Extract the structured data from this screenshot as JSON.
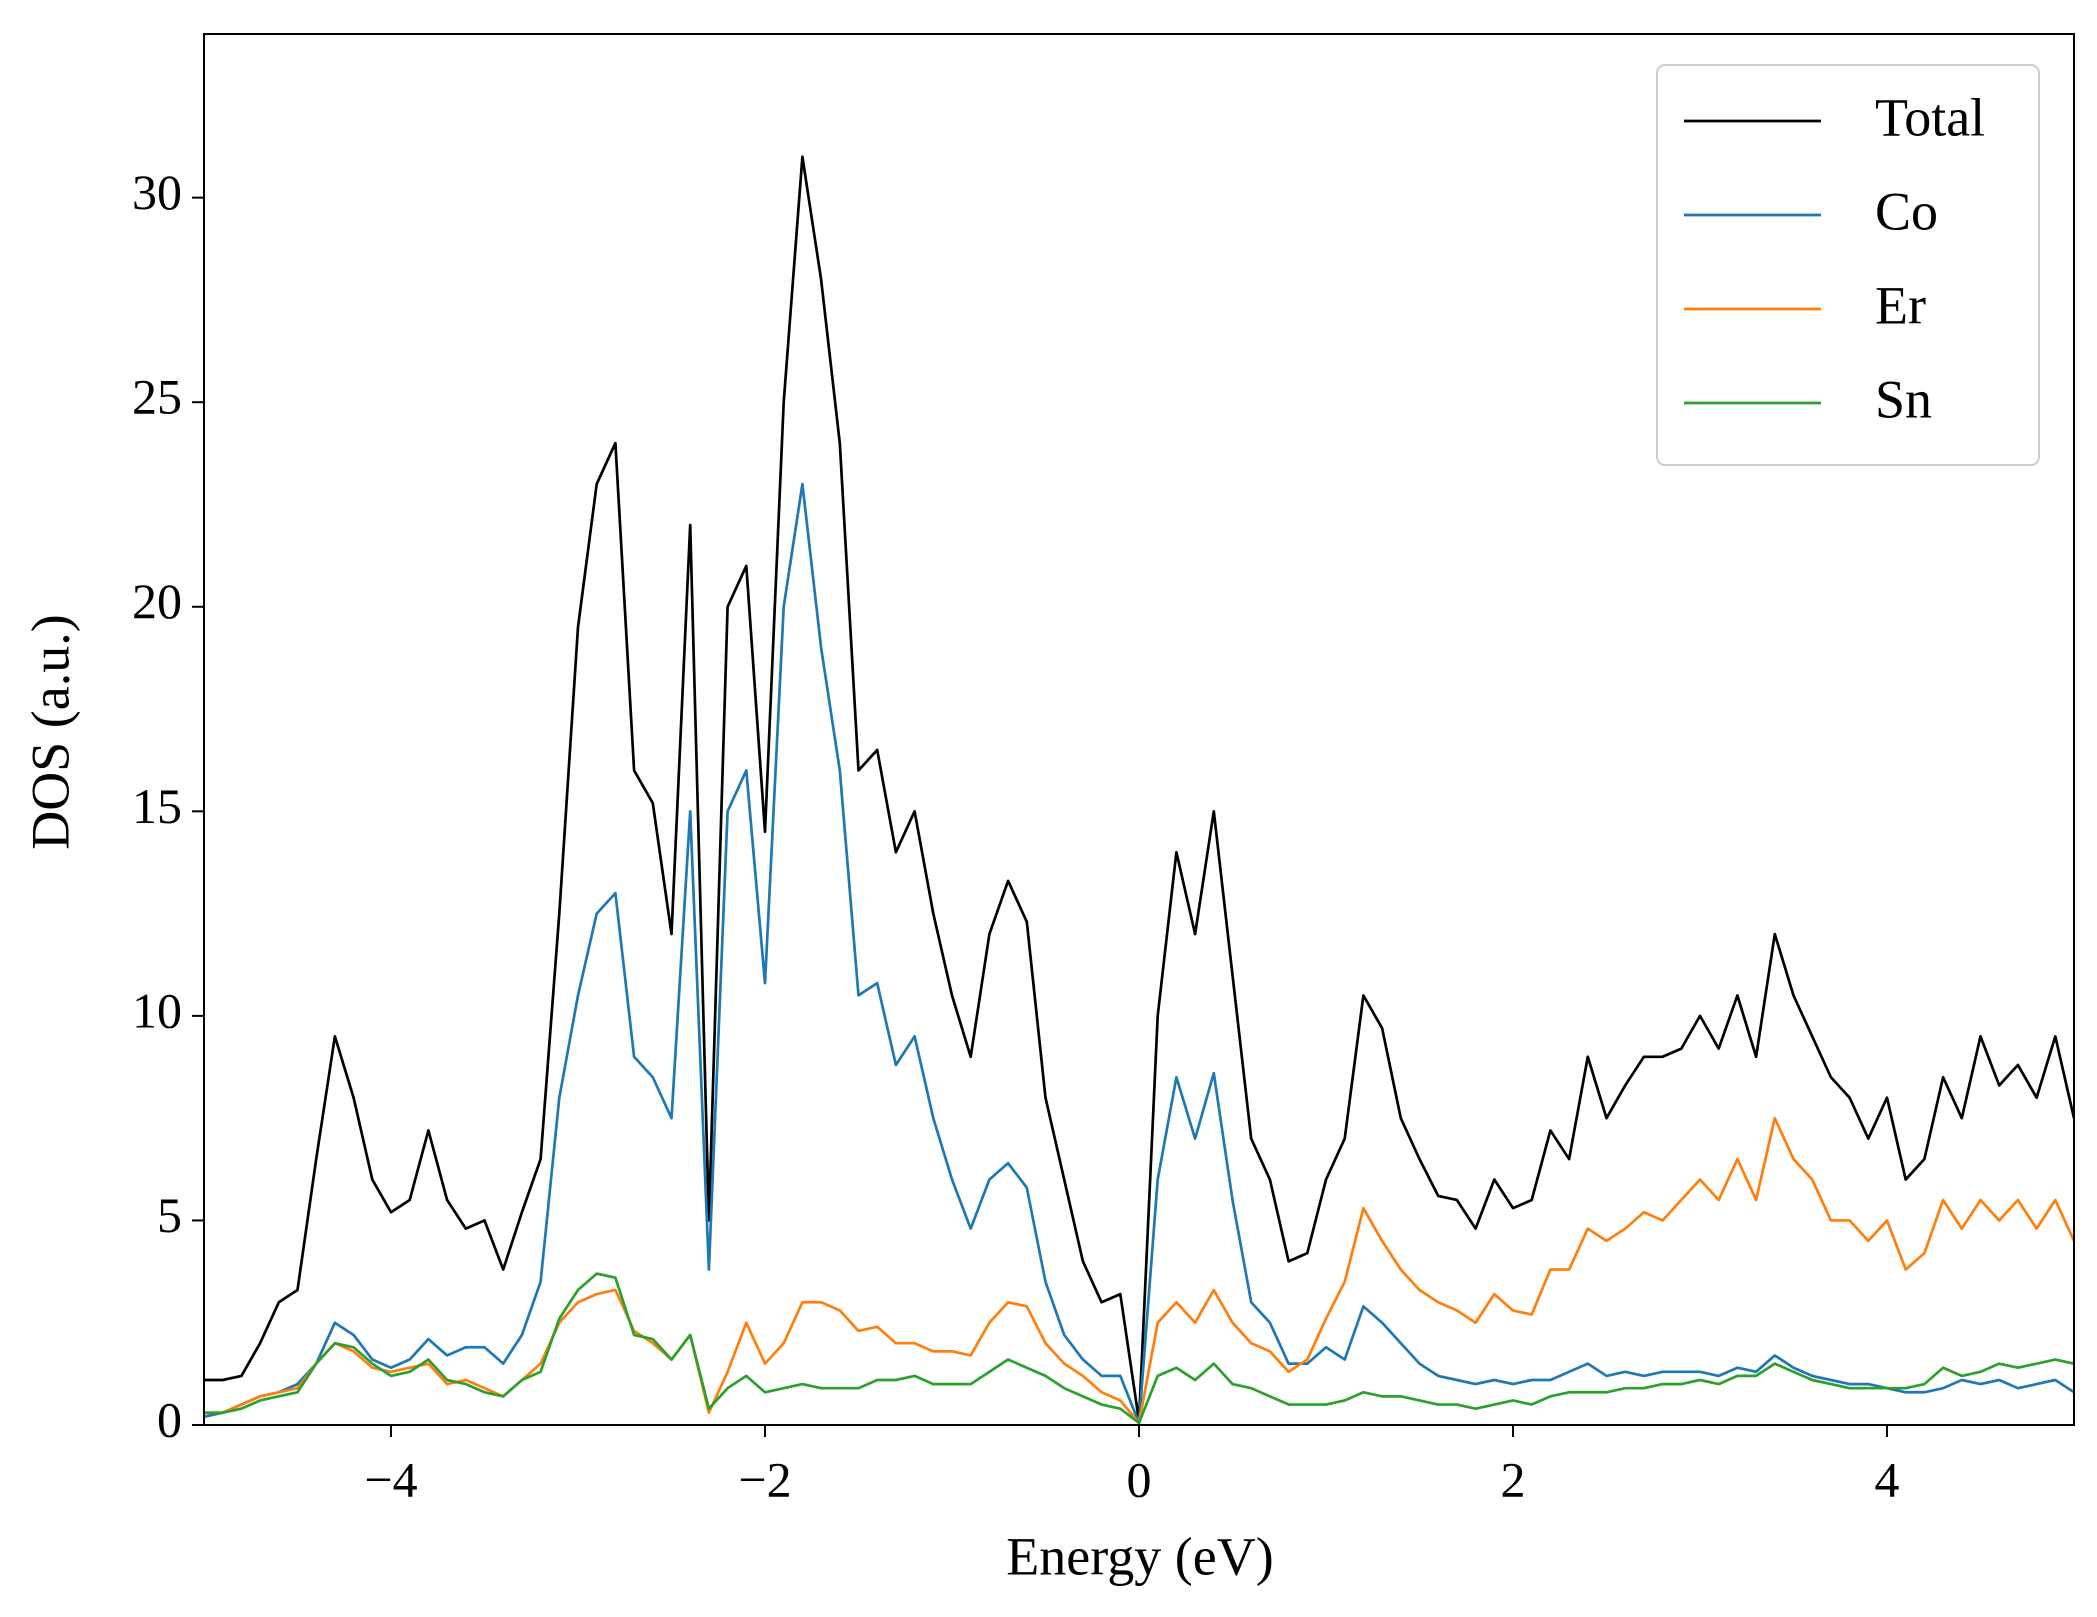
{
  "chart_data": {
    "type": "line",
    "xlabel": "Energy (eV)",
    "ylabel": "DOS (a.u.)",
    "xlim": [
      -5,
      5
    ],
    "ylim": [
      0,
      34
    ],
    "xticks": [
      {
        "value": -4,
        "label": "−4"
      },
      {
        "value": -2,
        "label": "−2"
      },
      0,
      2,
      4
    ],
    "yticks": [
      0,
      5,
      10,
      15,
      20,
      25,
      30
    ],
    "legend": "upper right",
    "x": [
      -5.0,
      -4.9,
      -4.8,
      -4.7,
      -4.6,
      -4.5,
      -4.4,
      -4.3,
      -4.2,
      -4.1,
      -4.0,
      -3.9,
      -3.8,
      -3.7,
      -3.6,
      -3.5,
      -3.4,
      -3.3,
      -3.2,
      -3.1,
      -3.0,
      -2.9,
      -2.8,
      -2.7,
      -2.6,
      -2.5,
      -2.4,
      -2.3,
      -2.2,
      -2.1,
      -2.0,
      -1.9,
      -1.8,
      -1.7,
      -1.6,
      -1.5,
      -1.4,
      -1.3,
      -1.2,
      -1.1,
      -1.0,
      -0.9,
      -0.8,
      -0.7,
      -0.6,
      -0.5,
      -0.4,
      -0.3,
      -0.2,
      -0.1,
      0.0,
      0.1,
      0.2,
      0.3,
      0.4,
      0.5,
      0.6,
      0.7,
      0.8,
      0.9,
      1.0,
      1.1,
      1.2,
      1.3,
      1.4,
      1.5,
      1.6,
      1.7,
      1.8,
      1.9,
      2.0,
      2.1,
      2.2,
      2.3,
      2.4,
      2.5,
      2.6,
      2.7,
      2.8,
      2.9,
      3.0,
      3.1,
      3.2,
      3.3,
      3.4,
      3.5,
      3.6,
      3.7,
      3.8,
      3.9,
      4.0,
      4.1,
      4.2,
      4.3,
      4.4,
      4.5,
      4.6,
      4.7,
      4.8,
      4.9,
      5.0
    ],
    "series": [
      {
        "name": "Total",
        "color": "#000000",
        "values": [
          1.1,
          1.1,
          1.2,
          2.0,
          3.0,
          3.3,
          6.5,
          9.5,
          8.0,
          6.0,
          5.2,
          5.5,
          7.2,
          5.5,
          4.8,
          5.0,
          3.8,
          5.2,
          6.5,
          12.5,
          19.5,
          23.0,
          24.0,
          16.0,
          15.2,
          12.0,
          22.0,
          5.0,
          20.0,
          21.0,
          14.5,
          25.0,
          31.0,
          28.0,
          24.0,
          16.0,
          16.5,
          14.0,
          15.0,
          12.5,
          10.5,
          9.0,
          12.0,
          13.3,
          12.3,
          8.0,
          6.0,
          4.0,
          3.0,
          3.2,
          0.1,
          10.0,
          14.0,
          12.0,
          15.0,
          11.0,
          7.0,
          6.0,
          4.0,
          4.2,
          6.0,
          7.0,
          10.5,
          9.7,
          7.5,
          6.5,
          5.6,
          5.5,
          4.8,
          6.0,
          5.3,
          5.5,
          7.2,
          6.5,
          9.0,
          7.5,
          8.3,
          9.0,
          9.0,
          9.2,
          10.0,
          9.2,
          10.5,
          9.0,
          12.0,
          10.5,
          9.5,
          8.5,
          8.0,
          7.0,
          8.0,
          6.0,
          6.5,
          8.5,
          7.5,
          9.5,
          8.3,
          8.8,
          8.0,
          9.5,
          7.5
        ]
      },
      {
        "name": "Co",
        "color": "#1f77b4",
        "values": [
          0.2,
          0.3,
          0.5,
          0.7,
          0.8,
          1.0,
          1.5,
          2.5,
          2.2,
          1.6,
          1.4,
          1.6,
          2.1,
          1.7,
          1.9,
          1.9,
          1.5,
          2.2,
          3.5,
          8.0,
          10.5,
          12.5,
          13.0,
          9.0,
          8.5,
          7.5,
          15.0,
          3.8,
          15.0,
          16.0,
          10.8,
          20.0,
          23.0,
          19.0,
          16.0,
          10.5,
          10.8,
          8.8,
          9.5,
          7.5,
          6.0,
          4.8,
          6.0,
          6.4,
          5.8,
          3.5,
          2.2,
          1.6,
          1.2,
          1.2,
          0.05,
          6.0,
          8.5,
          7.0,
          8.6,
          5.5,
          3.0,
          2.5,
          1.5,
          1.5,
          1.9,
          1.6,
          2.9,
          2.5,
          2.0,
          1.5,
          1.2,
          1.1,
          1.0,
          1.1,
          1.0,
          1.1,
          1.1,
          1.3,
          1.5,
          1.2,
          1.3,
          1.2,
          1.3,
          1.3,
          1.3,
          1.2,
          1.4,
          1.3,
          1.7,
          1.4,
          1.2,
          1.1,
          1.0,
          1.0,
          0.9,
          0.8,
          0.8,
          0.9,
          1.1,
          1.0,
          1.1,
          0.9,
          1.0,
          1.1,
          0.8
        ]
      },
      {
        "name": "Er",
        "color": "#ff7f0e",
        "values": [
          0.3,
          0.3,
          0.5,
          0.7,
          0.8,
          0.9,
          1.5,
          2.0,
          1.8,
          1.4,
          1.3,
          1.4,
          1.5,
          1.0,
          1.1,
          0.9,
          0.7,
          1.1,
          1.5,
          2.5,
          3.0,
          3.2,
          3.3,
          2.3,
          2.0,
          1.6,
          2.2,
          0.3,
          1.3,
          2.5,
          1.5,
          2.0,
          3.0,
          3.0,
          2.8,
          2.3,
          2.4,
          2.0,
          2.0,
          1.8,
          1.8,
          1.7,
          2.5,
          3.0,
          2.9,
          2.0,
          1.5,
          1.2,
          0.8,
          0.6,
          0.05,
          2.5,
          3.0,
          2.5,
          3.3,
          2.5,
          2.0,
          1.8,
          1.3,
          1.6,
          2.6,
          3.5,
          5.3,
          4.5,
          3.8,
          3.3,
          3.0,
          2.8,
          2.5,
          3.2,
          2.8,
          2.7,
          3.8,
          3.8,
          4.8,
          4.5,
          4.8,
          5.2,
          5.0,
          5.5,
          6.0,
          5.5,
          6.5,
          5.5,
          7.5,
          6.5,
          6.0,
          5.0,
          5.0,
          4.5,
          5.0,
          3.8,
          4.2,
          5.5,
          4.8,
          5.5,
          5.0,
          5.5,
          4.8,
          5.5,
          4.5
        ]
      },
      {
        "name": "Sn",
        "color": "#2ca02c",
        "values": [
          0.3,
          0.3,
          0.4,
          0.6,
          0.7,
          0.8,
          1.5,
          2.0,
          1.9,
          1.5,
          1.2,
          1.3,
          1.6,
          1.1,
          1.0,
          0.8,
          0.7,
          1.1,
          1.3,
          2.6,
          3.3,
          3.7,
          3.6,
          2.2,
          2.1,
          1.6,
          2.2,
          0.4,
          0.9,
          1.2,
          0.8,
          0.9,
          1.0,
          0.9,
          0.9,
          0.9,
          1.1,
          1.1,
          1.2,
          1.0,
          1.0,
          1.0,
          1.3,
          1.6,
          1.4,
          1.2,
          0.9,
          0.7,
          0.5,
          0.4,
          0.05,
          1.2,
          1.4,
          1.1,
          1.5,
          1.0,
          0.9,
          0.7,
          0.5,
          0.5,
          0.5,
          0.6,
          0.8,
          0.7,
          0.7,
          0.6,
          0.5,
          0.5,
          0.4,
          0.5,
          0.6,
          0.5,
          0.7,
          0.8,
          0.8,
          0.8,
          0.9,
          0.9,
          1.0,
          1.0,
          1.1,
          1.0,
          1.2,
          1.2,
          1.5,
          1.3,
          1.1,
          1.0,
          0.9,
          0.9,
          0.9,
          0.9,
          1.0,
          1.4,
          1.2,
          1.3,
          1.5,
          1.4,
          1.5,
          1.6,
          1.5
        ]
      }
    ]
  }
}
